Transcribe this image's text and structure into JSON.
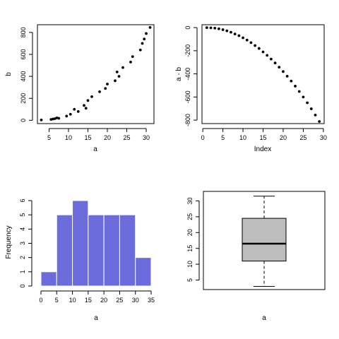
{
  "chart_data": [
    {
      "type": "scatter",
      "xlabel": "a",
      "ylabel": "b",
      "xlim": [
        2,
        32
      ],
      "ylim": [
        -30,
        870
      ],
      "xticks": [
        5,
        10,
        15,
        20,
        25,
        30
      ],
      "yticks": [
        0,
        200,
        400,
        600,
        800
      ],
      "grid": false,
      "points": [
        {
          "x": 3,
          "y": 3
        },
        {
          "x": 5.5,
          "y": 8
        },
        {
          "x": 6,
          "y": 12
        },
        {
          "x": 6.5,
          "y": 15
        },
        {
          "x": 7,
          "y": 22
        },
        {
          "x": 7.5,
          "y": 18
        },
        {
          "x": 9.5,
          "y": 38
        },
        {
          "x": 10.5,
          "y": 55
        },
        {
          "x": 11.5,
          "y": 100
        },
        {
          "x": 12.5,
          "y": 80
        },
        {
          "x": 14,
          "y": 135
        },
        {
          "x": 14.5,
          "y": 110
        },
        {
          "x": 15,
          "y": 180
        },
        {
          "x": 16,
          "y": 215
        },
        {
          "x": 18,
          "y": 260
        },
        {
          "x": 19.5,
          "y": 290
        },
        {
          "x": 20,
          "y": 330
        },
        {
          "x": 22,
          "y": 360
        },
        {
          "x": 22.5,
          "y": 440
        },
        {
          "x": 23,
          "y": 400
        },
        {
          "x": 24,
          "y": 480
        },
        {
          "x": 26,
          "y": 530
        },
        {
          "x": 26.5,
          "y": 580
        },
        {
          "x": 28.5,
          "y": 640
        },
        {
          "x": 29,
          "y": 700
        },
        {
          "x": 29.5,
          "y": 740
        },
        {
          "x": 30,
          "y": 790
        },
        {
          "x": 31,
          "y": 845
        }
      ]
    },
    {
      "type": "scatter",
      "xlabel": "Index",
      "ylabel": "a - b",
      "xlim": [
        -0.2,
        30.2
      ],
      "ylim": [
        -830,
        25
      ],
      "xticks": [
        0,
        5,
        10,
        15,
        20,
        25,
        30
      ],
      "yticks": [
        0,
        -200,
        -400,
        -600,
        -800
      ],
      "grid": false,
      "points": [
        {
          "x": 1,
          "y": 0
        },
        {
          "x": 2,
          "y": -2
        },
        {
          "x": 3,
          "y": -5
        },
        {
          "x": 4,
          "y": -10
        },
        {
          "x": 5,
          "y": -18
        },
        {
          "x": 6,
          "y": -28
        },
        {
          "x": 7,
          "y": -40
        },
        {
          "x": 8,
          "y": -55
        },
        {
          "x": 9,
          "y": -70
        },
        {
          "x": 10,
          "y": -88
        },
        {
          "x": 11,
          "y": -108
        },
        {
          "x": 12,
          "y": -130
        },
        {
          "x": 13,
          "y": -155
        },
        {
          "x": 14,
          "y": -180
        },
        {
          "x": 15,
          "y": -210
        },
        {
          "x": 16,
          "y": -240
        },
        {
          "x": 17,
          "y": -272
        },
        {
          "x": 18,
          "y": -306
        },
        {
          "x": 19,
          "y": -342
        },
        {
          "x": 20,
          "y": -380
        },
        {
          "x": 21,
          "y": -420
        },
        {
          "x": 22,
          "y": -462
        },
        {
          "x": 23,
          "y": -506
        },
        {
          "x": 24,
          "y": -552
        },
        {
          "x": 25,
          "y": -600
        },
        {
          "x": 26,
          "y": -650
        },
        {
          "x": 27,
          "y": -702
        },
        {
          "x": 28,
          "y": -756
        },
        {
          "x": 29,
          "y": -812
        }
      ]
    },
    {
      "type": "bar",
      "subtype": "histogram",
      "xlabel": "a",
      "ylabel": "Frequency",
      "xlim": [
        0,
        35
      ],
      "ylim": [
        0,
        6.2
      ],
      "xticks": [
        0,
        5,
        10,
        15,
        20,
        25,
        30,
        35
      ],
      "yticks": [
        0,
        1,
        2,
        3,
        4,
        5,
        6
      ],
      "bins": [
        {
          "from": 0,
          "to": 5,
          "count": 1
        },
        {
          "from": 5,
          "to": 10,
          "count": 5
        },
        {
          "from": 10,
          "to": 15,
          "count": 6
        },
        {
          "from": 15,
          "to": 20,
          "count": 5
        },
        {
          "from": 20,
          "to": 25,
          "count": 5
        },
        {
          "from": 25,
          "to": 30,
          "count": 5
        },
        {
          "from": 30,
          "to": 35,
          "count": 2
        }
      ],
      "bar_color": "#6b6bdb",
      "grid": false
    },
    {
      "type": "box",
      "xlabel": "a",
      "ylim": [
        2,
        33
      ],
      "yticks": [
        5,
        10,
        15,
        20,
        25,
        30
      ],
      "stats": {
        "min": 3,
        "q1": 11,
        "median": 16.5,
        "q3": 24.5,
        "max": 31.5
      },
      "box_color": "#bdbdbd",
      "grid": false
    }
  ]
}
